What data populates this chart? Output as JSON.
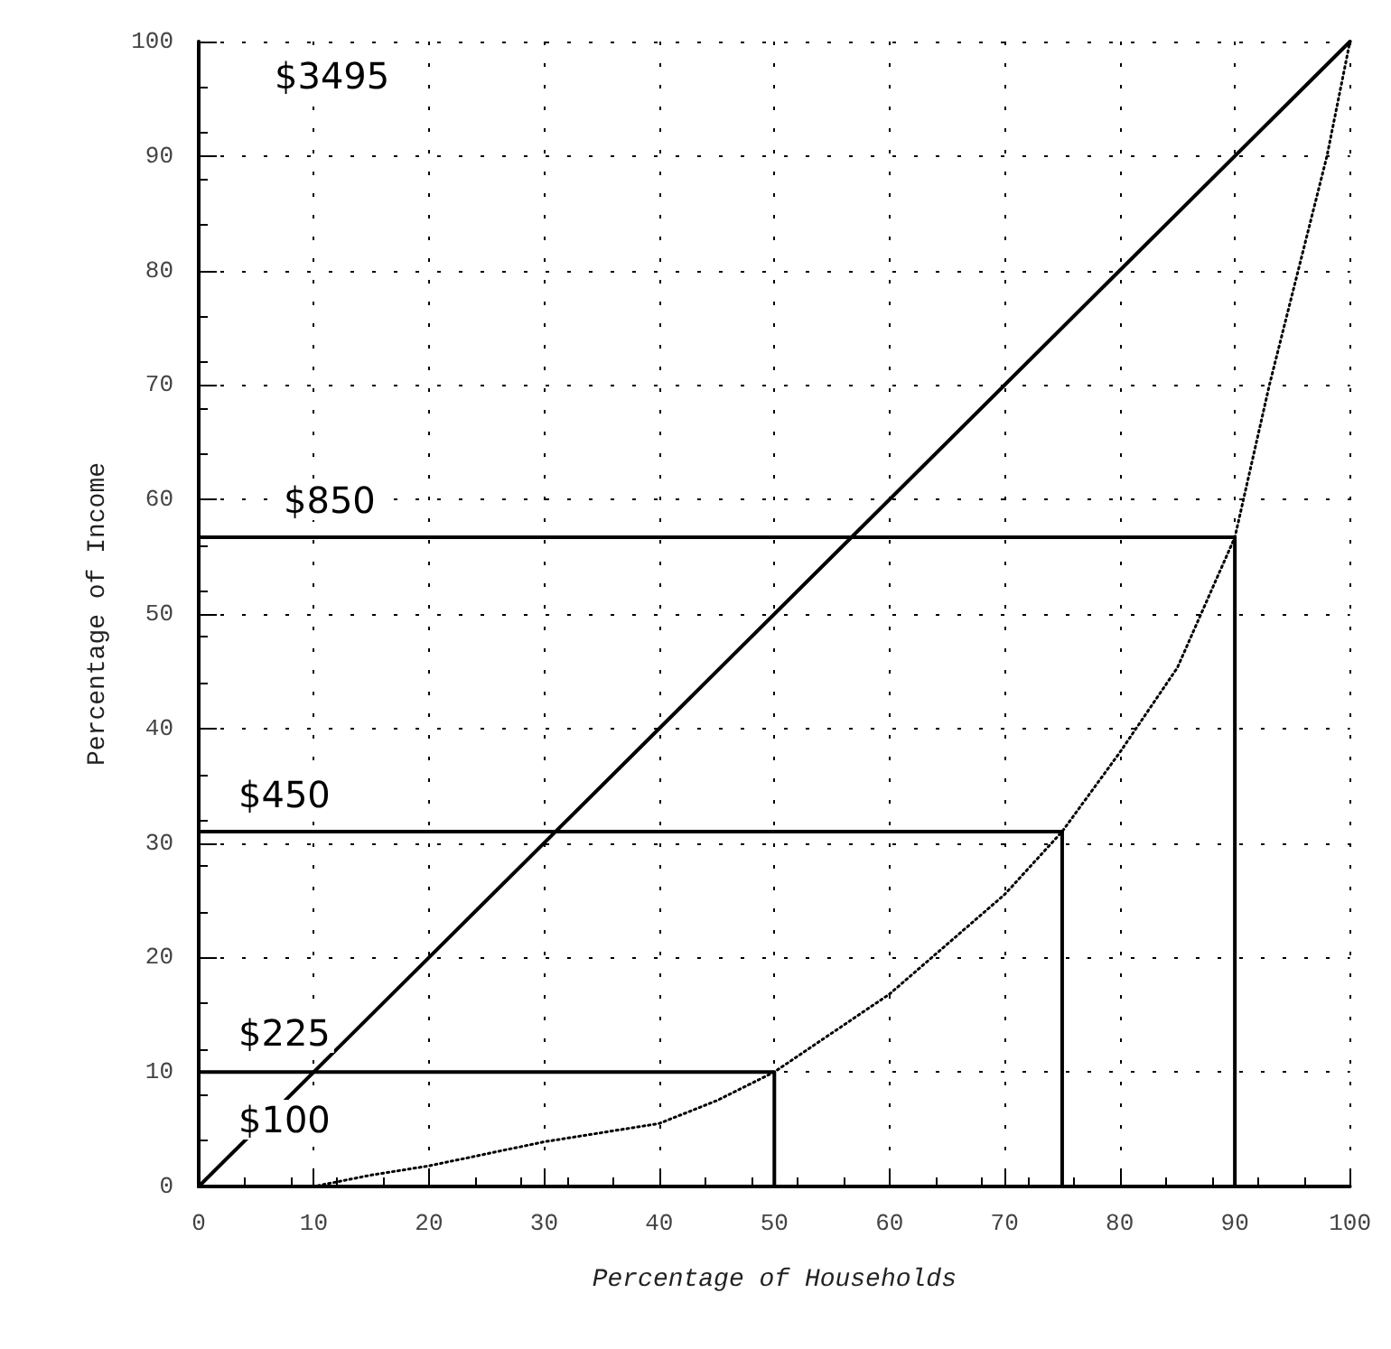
{
  "chart_data": {
    "type": "line",
    "xlabel": "Percentage of Households",
    "ylabel": "Percentage of Income",
    "xlim": [
      0,
      100
    ],
    "ylim": [
      0,
      100
    ],
    "xticks": [
      0,
      10,
      20,
      30,
      40,
      50,
      60,
      70,
      80,
      90,
      100
    ],
    "yticks": [
      0,
      10,
      20,
      30,
      40,
      50,
      60,
      70,
      80,
      90,
      100
    ],
    "grid": true,
    "marker": "none",
    "series": [
      {
        "color": "#000000",
        "line_style": "solid",
        "x": [
          0,
          100
        ],
        "values": [
          0,
          100
        ]
      },
      {
        "color": "#000000",
        "line_style": "dotted",
        "x": [
          0,
          10,
          15,
          20,
          30,
          40,
          45,
          50,
          60,
          70,
          75,
          80,
          85,
          90,
          93,
          96,
          98,
          100
        ],
        "values": [
          0,
          0,
          1,
          1.8,
          3.9,
          5.5,
          7.5,
          10,
          16.8,
          25.5,
          31,
          37.9,
          45.3,
          56.7,
          70,
          82,
          90,
          100
        ]
      },
      {
        "color": "#000000",
        "line_style": "solid",
        "x": [
          0,
          50,
          50
        ],
        "values": [
          10,
          10,
          0
        ]
      },
      {
        "color": "#000000",
        "line_style": "solid",
        "x": [
          0,
          75,
          75
        ],
        "values": [
          31,
          31,
          0
        ]
      },
      {
        "color": "#000000",
        "line_style": "solid",
        "x": [
          0,
          90,
          90
        ],
        "values": [
          56.7,
          56.7,
          0
        ]
      }
    ],
    "annotations": [
      "$3495",
      "$850",
      "$450",
      "$225",
      "$100"
    ]
  }
}
